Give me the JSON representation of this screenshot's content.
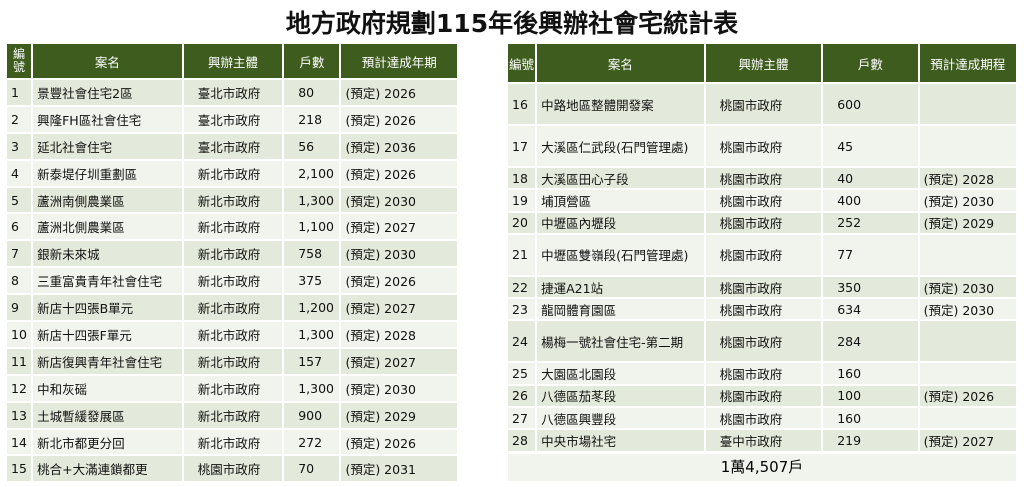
{
  "title": "地方政府規劃115年後興辦社會宅統計表",
  "left_table": {
    "header": [
      "編號",
      "案名",
      "興辦主體",
      "戶數",
      "預計達成年期"
    ],
    "rows": [
      [
        "1",
        "景豐社會住宅2區",
        "臺北市政府",
        "80",
        "(預定) 2026"
      ],
      [
        "2",
        "興隆FH區社會住宅",
        "臺北市政府",
        "218",
        "(預定) 2026"
      ],
      [
        "3",
        "延北社會住宅",
        "臺北市政府",
        "56",
        "(預定) 2036"
      ],
      [
        "4",
        "新泰堤仔圳重劃區",
        "新北市政府",
        "2,100",
        "(預定) 2026"
      ],
      [
        "5",
        "蘆洲南側農業區",
        "新北市政府",
        "1,300",
        "(預定) 2030"
      ],
      [
        "6",
        "蘆洲北側農業區",
        "新北市政府",
        "1,100",
        "(預定) 2027"
      ],
      [
        "7",
        "銀新未來城",
        "新北市政府",
        "758",
        "(預定) 2030"
      ],
      [
        "8",
        "三重富貴青年社會住宅",
        "新北市政府",
        "375",
        "(預定) 2026"
      ],
      [
        "9",
        "新店十四張B單元",
        "新北市政府",
        "1,200",
        "(預定) 2027"
      ],
      [
        "10",
        "新店十四張F單元",
        "新北市政府",
        "1,300",
        "(預定) 2028"
      ],
      [
        "11",
        "新店復興青年社會住宅",
        "新北市政府",
        "157",
        "(預定) 2027"
      ],
      [
        "12",
        "中和灰磘",
        "新北市政府",
        "1,300",
        "(預定) 2030"
      ],
      [
        "13",
        "土城暫緩發展區",
        "新北市政府",
        "900",
        "(預定) 2029"
      ],
      [
        "14",
        "新北市都更分回",
        "新北市政府",
        "272",
        "(預定) 2026"
      ],
      [
        "15",
        "桃合+大滿連鎖都更",
        "桃園市政府",
        "70",
        "(預定) 2031"
      ]
    ]
  },
  "right_table": {
    "header": [
      "編號",
      "案名",
      "興辦主體",
      "戶數",
      "預計達成期程"
    ],
    "rows": [
      [
        "16",
        "中路地區整體開發案",
        "桃園市政府",
        "600"
      ],
      [
        "17",
        "大溪區仁武段(石門管理處)",
        "桃園市政府",
        "45"
      ],
      [
        "18",
        "大溪區田心子段",
        "桃園市政府",
        "40",
        "(預定) 2028"
      ],
      [
        "19",
        "埔頂營區",
        "桃園市政府",
        "400",
        "(預定) 2030"
      ],
      [
        "20",
        "中壢區內壢段",
        "桃園市政府",
        "252",
        "(預定) 2029"
      ],
      [
        "21",
        "中壢區雙嶺段(石門管理處)",
        "桃園市政府",
        "77"
      ],
      [
        "22",
        "捷運A21站",
        "桃園市政府",
        "350",
        "(預定) 2030"
      ],
      [
        "23",
        "龍岡體育園區",
        "桃園市政府",
        "634",
        "(預定) 2030"
      ],
      [
        "24",
        "楊梅一號社會住宅-第二期",
        "桃園市政府",
        "284"
      ],
      [
        "25",
        "大園區北園段",
        "桃園市政府",
        "160"
      ],
      [
        "26",
        "八德區茄苳段",
        "桃園市政府",
        "100",
        "(預定) 2026"
      ],
      [
        "27",
        "八德區興豐段",
        "桃園市政府",
        "160"
      ],
      [
        "28",
        "中央市場社宅",
        "臺中市政府",
        "219",
        "(預定) 2027"
      ]
    ],
    "total": "1萬4,507戶"
  }
}
